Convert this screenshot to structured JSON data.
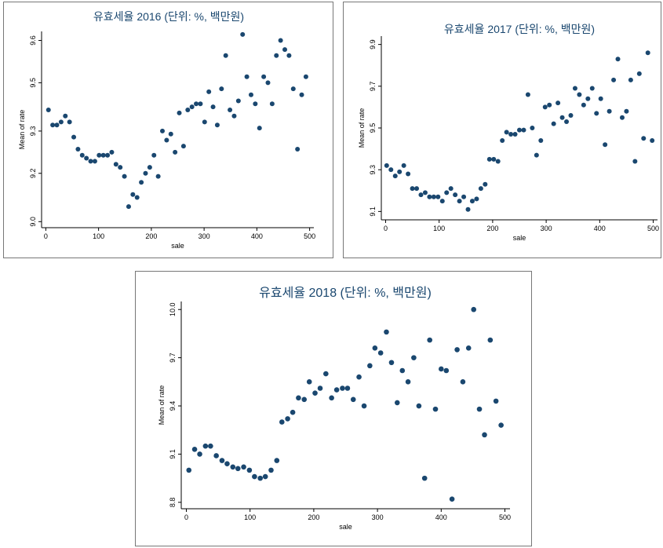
{
  "chart_data": [
    {
      "type": "scatter",
      "title": "유효세율 2016 (단위: %, 백만원)",
      "xlabel": "sale",
      "ylabel": "Mean of rate",
      "color": "#1a476f",
      "x": [
        5,
        13,
        21,
        29,
        37,
        45,
        53,
        61,
        69,
        77,
        85,
        93,
        101,
        109,
        117,
        125,
        133,
        141,
        149,
        157,
        165,
        173,
        181,
        189,
        197,
        205,
        213,
        221,
        229,
        237,
        245,
        253,
        261,
        269,
        277,
        285,
        293,
        301,
        309,
        317,
        325,
        333,
        341,
        349,
        357,
        365,
        373,
        381,
        389,
        397,
        405,
        413,
        421,
        429,
        437,
        445,
        453,
        461,
        469,
        477,
        485,
        493
      ],
      "values": [
        9.41,
        9.36,
        9.36,
        9.37,
        9.39,
        9.37,
        9.32,
        9.28,
        9.26,
        9.25,
        9.24,
        9.24,
        9.26,
        9.26,
        9.26,
        9.27,
        9.23,
        9.22,
        9.19,
        9.09,
        9.13,
        9.12,
        9.17,
        9.2,
        9.22,
        9.26,
        9.19,
        9.34,
        9.31,
        9.33,
        9.27,
        9.4,
        9.29,
        9.41,
        9.42,
        9.43,
        9.43,
        9.37,
        9.47,
        9.42,
        9.36,
        9.48,
        9.59,
        9.41,
        9.39,
        9.44,
        9.66,
        9.52,
        9.46,
        9.43,
        9.35,
        9.52,
        9.5,
        9.43,
        9.59,
        9.64,
        9.61,
        9.59,
        9.48,
        9.28,
        9.46,
        9.52
      ],
      "xlim": [
        -8,
        508
      ],
      "xticks": [
        0,
        100,
        200,
        300,
        400,
        500
      ],
      "ylim": [
        9.02,
        9.67
      ],
      "yticks": [
        {
          "value": 9.04,
          "label": "9.0"
        },
        9.2,
        {
          "value": 9.34,
          "label": "9.3"
        },
        9.5,
        {
          "value": 9.64,
          "label": "9.6"
        }
      ]
    },
    {
      "type": "scatter",
      "title": "유효세율 2017 (단위: %, 백만원)",
      "xlabel": "sale",
      "ylabel": "Mean of rate",
      "color": "#1a476f",
      "x": [
        2,
        10,
        18,
        26,
        34,
        42,
        50,
        58,
        66,
        74,
        82,
        90,
        98,
        106,
        114,
        122,
        130,
        138,
        146,
        154,
        162,
        170,
        178,
        186,
        194,
        202,
        210,
        218,
        226,
        234,
        242,
        250,
        258,
        266,
        274,
        282,
        290,
        298,
        306,
        314,
        322,
        330,
        338,
        346,
        354,
        362,
        370,
        378,
        386,
        394,
        402,
        410,
        418,
        426,
        434,
        442,
        450,
        458,
        466,
        474,
        482,
        490,
        498
      ],
      "values": [
        9.32,
        9.3,
        9.27,
        9.29,
        9.32,
        9.28,
        9.21,
        9.21,
        9.18,
        9.19,
        9.17,
        9.17,
        9.17,
        9.15,
        9.19,
        9.21,
        9.18,
        9.15,
        9.17,
        9.11,
        9.15,
        9.16,
        9.21,
        9.23,
        9.35,
        9.35,
        9.34,
        9.44,
        9.48,
        9.47,
        9.47,
        9.49,
        9.49,
        9.66,
        9.5,
        9.37,
        9.44,
        9.6,
        9.61,
        9.52,
        9.62,
        9.55,
        9.53,
        9.56,
        9.69,
        9.66,
        9.61,
        9.64,
        9.69,
        9.57,
        9.64,
        9.42,
        9.58,
        9.73,
        9.83,
        9.55,
        9.58,
        9.73,
        9.34,
        9.76,
        9.45,
        9.86,
        9.44
      ],
      "xlim": [
        -8,
        508
      ],
      "xticks": [
        0,
        100,
        200,
        300,
        400,
        500
      ],
      "ylim": [
        9.06,
        9.94
      ],
      "yticks": [
        9.1,
        9.3,
        9.5,
        9.7,
        9.9
      ]
    },
    {
      "type": "scatter",
      "title": "유효세율 2018 (단위: %, 백만원)",
      "xlabel": "sale",
      "ylabel": "Mean of rate",
      "color": "#1a476f",
      "x": [
        4,
        13,
        21,
        30,
        38,
        47,
        56,
        64,
        73,
        81,
        90,
        99,
        107,
        116,
        124,
        133,
        142,
        150,
        159,
        167,
        176,
        185,
        193,
        202,
        210,
        219,
        228,
        236,
        245,
        253,
        262,
        271,
        279,
        288,
        296,
        305,
        314,
        322,
        331,
        339,
        348,
        357,
        365,
        374,
        382,
        391,
        400,
        408,
        417,
        425,
        434,
        443,
        451,
        460,
        468,
        477,
        486,
        494
      ],
      "values": [
        9.0,
        9.13,
        9.1,
        9.15,
        9.15,
        9.09,
        9.06,
        9.04,
        9.02,
        9.01,
        9.02,
        9.0,
        8.96,
        8.95,
        8.96,
        9.0,
        9.06,
        9.3,
        9.32,
        9.36,
        9.45,
        9.44,
        9.55,
        9.48,
        9.51,
        9.6,
        9.45,
        9.5,
        9.51,
        9.51,
        9.44,
        9.58,
        9.4,
        9.65,
        9.76,
        9.73,
        9.86,
        9.67,
        9.42,
        9.62,
        9.55,
        9.7,
        9.4,
        8.95,
        9.81,
        9.38,
        9.63,
        9.62,
        8.82,
        9.75,
        9.55,
        9.76,
        10.0,
        9.38,
        9.22,
        9.81,
        9.43,
        9.28
      ],
      "xlim": [
        -8,
        508
      ],
      "xticks": [
        0,
        100,
        200,
        300,
        400,
        500
      ],
      "ylim": [
        8.76,
        10.05
      ],
      "yticks": [
        8.8,
        9.1,
        9.4,
        9.7,
        {
          "value": 10.0,
          "label": "10.0"
        }
      ]
    }
  ]
}
